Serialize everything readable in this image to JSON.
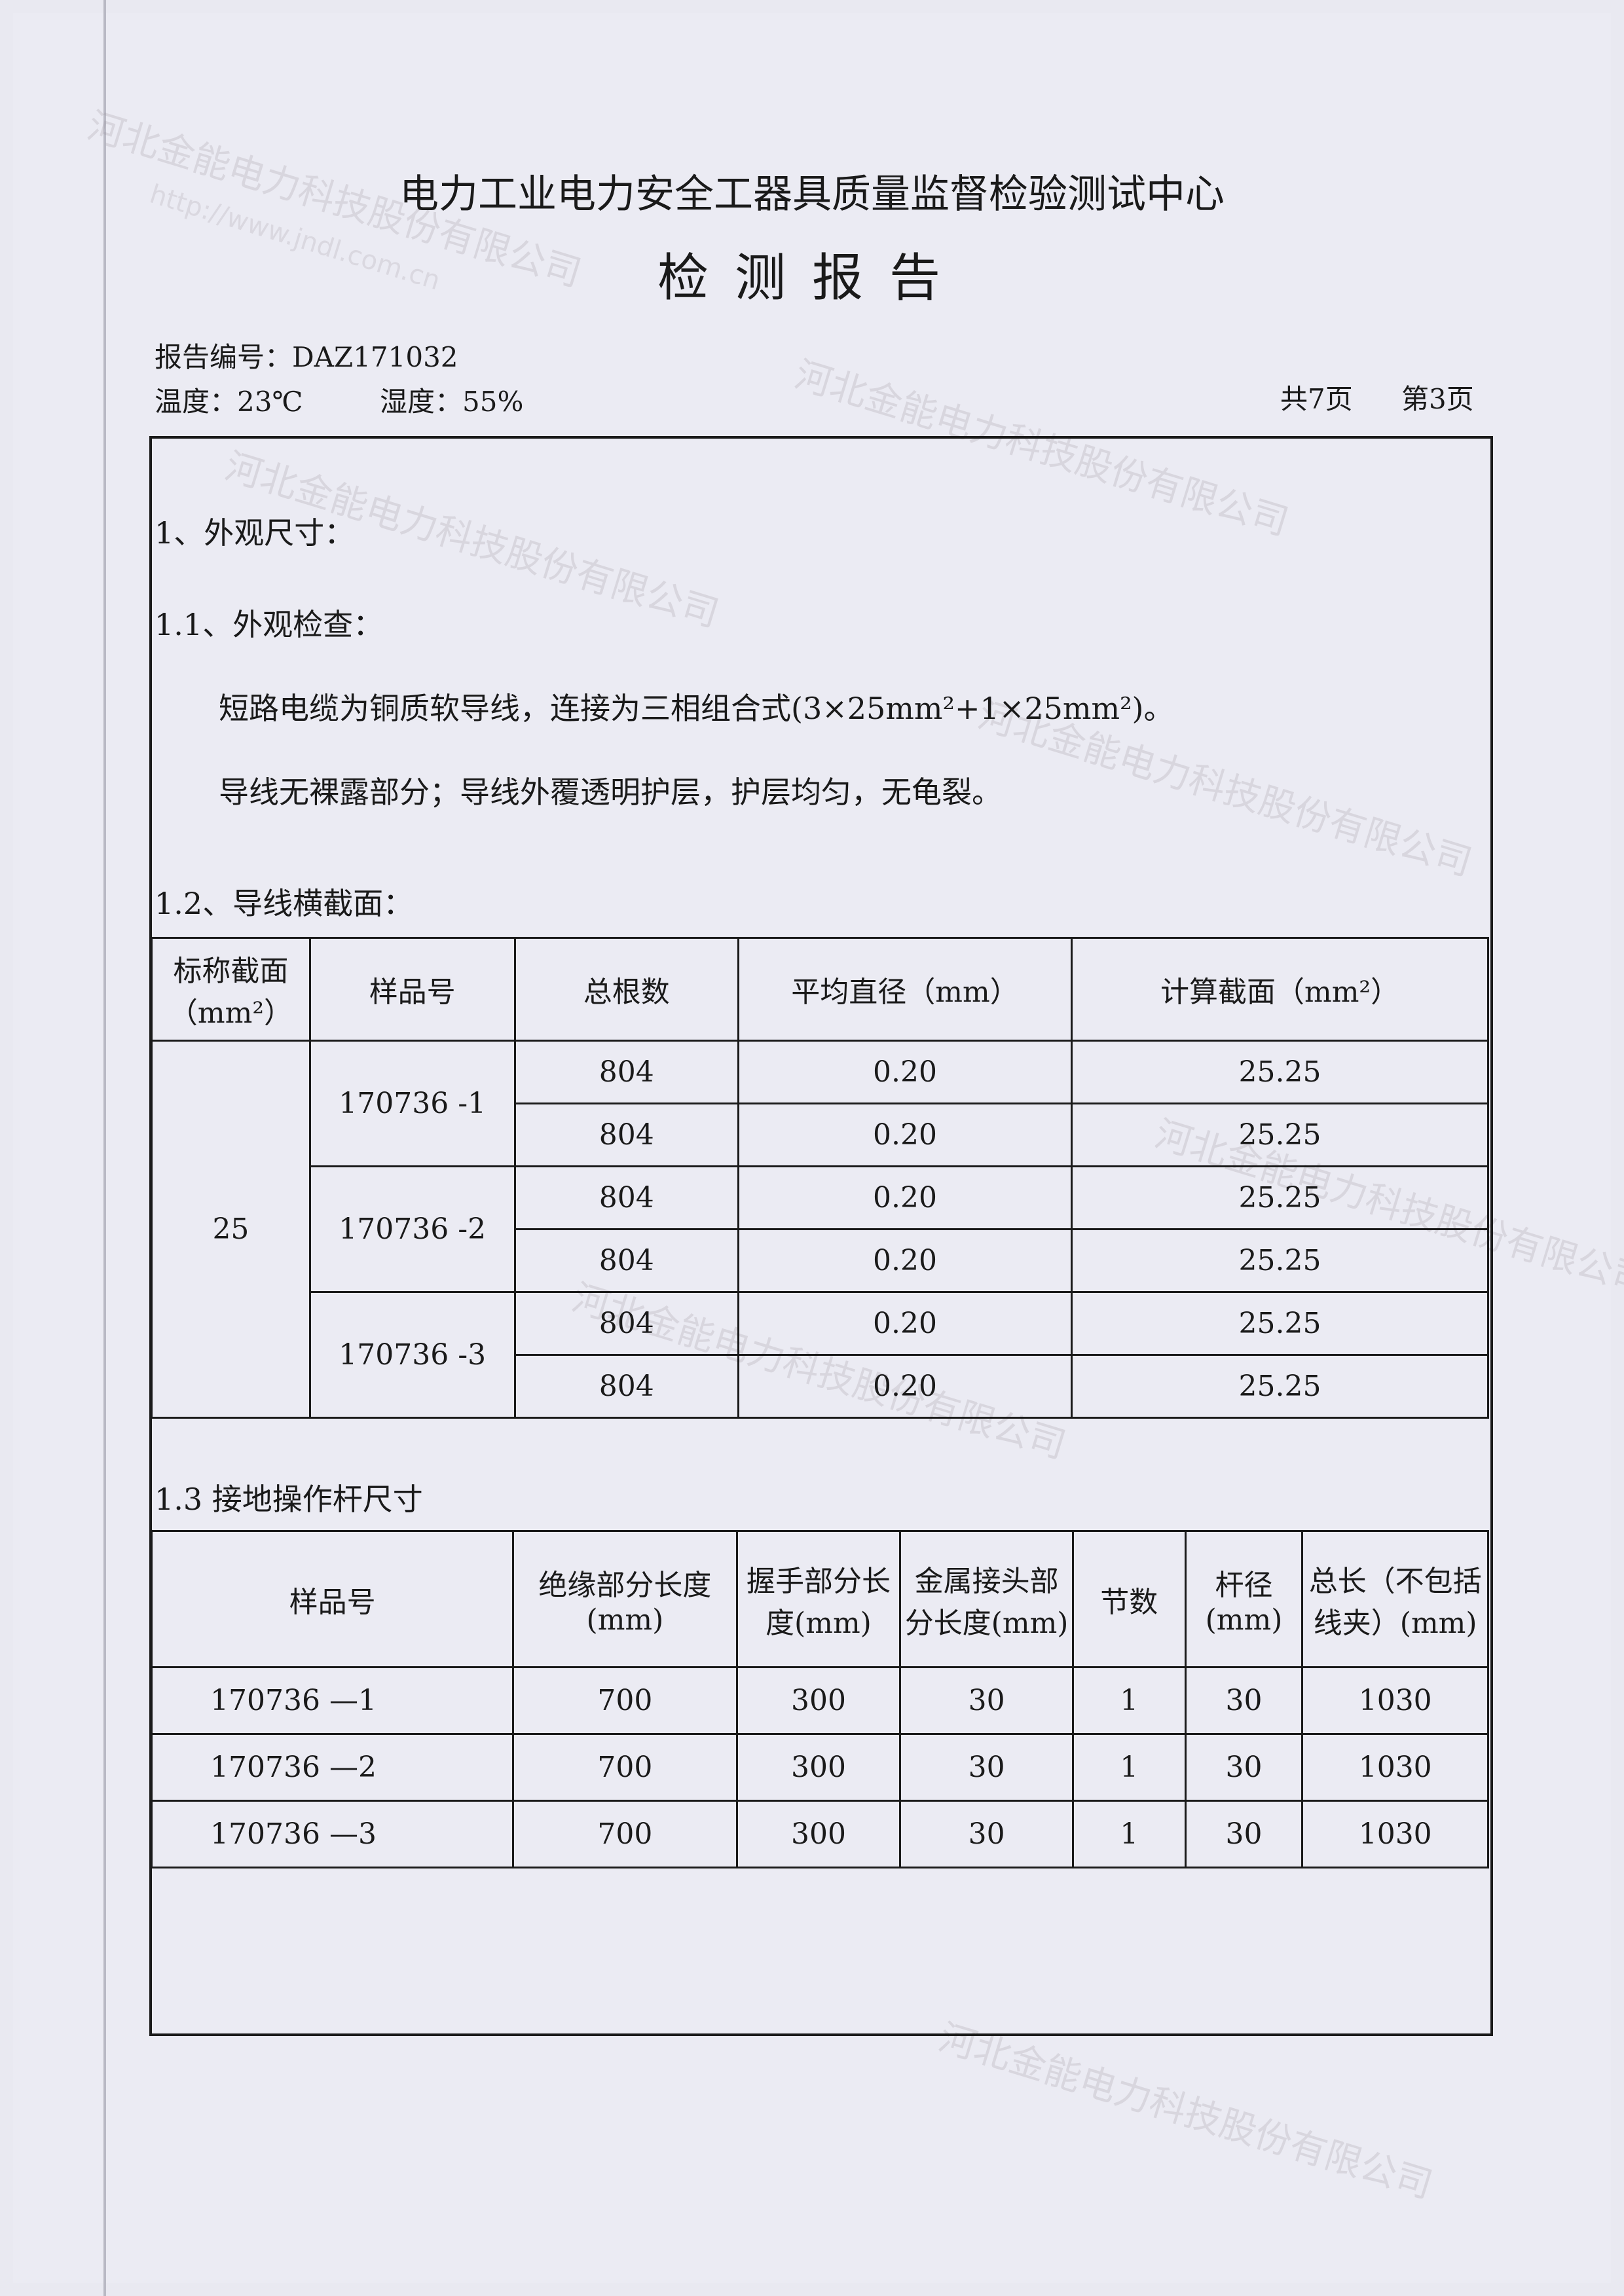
{
  "header": {
    "title": "电力工业电力安全工器具质量监督检验测试中心",
    "subtitle": "检测报告",
    "report_no": "报告编号：DAZ171032",
    "temperature": "温度：23℃",
    "humidity": "湿度：55%",
    "total_pages": "共7页",
    "current_page": "第3页"
  },
  "watermark": {
    "company": "河北金能电力科技股份有限公司",
    "url": "http://www.jndl.com.cn"
  },
  "sections": {
    "s1": "1、外观尺寸：",
    "s1_1": "1.1、外观检查：",
    "s1_1_line1": "短路电缆为铜质软导线，连接为三相组合式(3×25mm²+1×25mm²)。",
    "s1_1_line2": "导线无裸露部分；导线外覆透明护层，护层均匀，无龟裂。",
    "s1_2": "1.2、导线横截面：",
    "s1_3": "1.3 接地操作杆尺寸"
  },
  "table1": {
    "headers": [
      "标称截面（mm²）",
      "样品号",
      "总根数",
      "平均直径（mm）",
      "计算截面（mm²）"
    ],
    "nominal": "25",
    "samples": [
      "170736 -1",
      "170736 -2",
      "170736 -3"
    ],
    "rows": [
      [
        "804",
        "0.20",
        "25.25"
      ],
      [
        "804",
        "0.20",
        "25.25"
      ],
      [
        "804",
        "0.20",
        "25.25"
      ],
      [
        "804",
        "0.20",
        "25.25"
      ],
      [
        "804",
        "0.20",
        "25.25"
      ],
      [
        "804",
        "0.20",
        "25.25"
      ]
    ]
  },
  "table2": {
    "headers": [
      "样品号",
      "绝缘部分长度(mm)",
      "握手部分长度(mm)",
      "金属接头部分长度(mm)",
      "节数",
      "杆径(mm)",
      "总长（不包括线夹）(mm)"
    ],
    "rows": [
      [
        "170736 —1",
        "700",
        "300",
        "30",
        "1",
        "30",
        "1030"
      ],
      [
        "170736 —2",
        "700",
        "300",
        "30",
        "1",
        "30",
        "1030"
      ],
      [
        "170736 —3",
        "700",
        "300",
        "30",
        "1",
        "30",
        "1030"
      ]
    ]
  }
}
